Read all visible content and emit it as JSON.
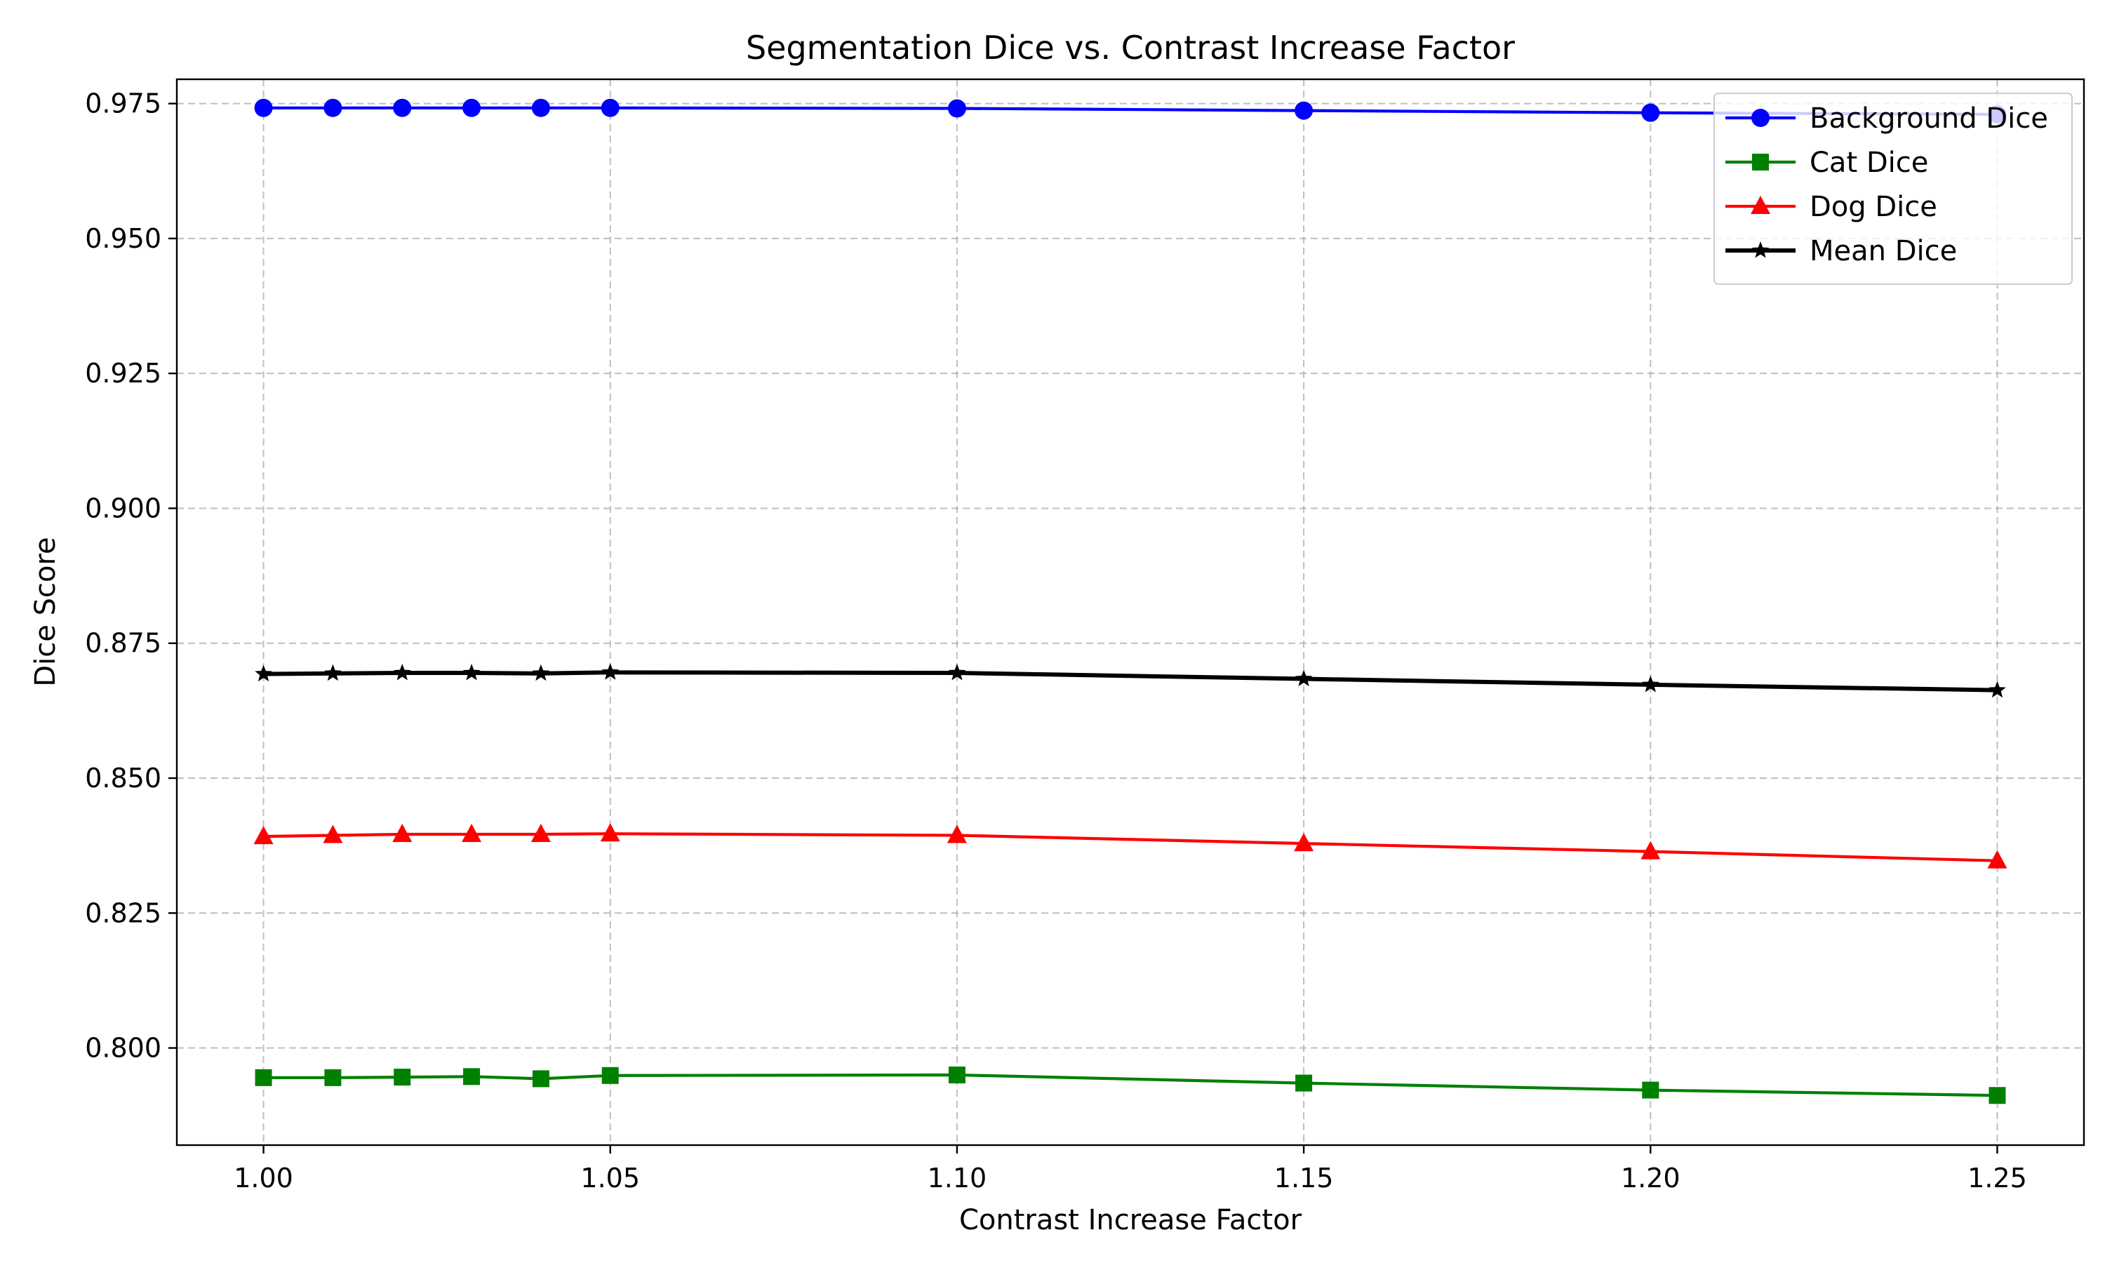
{
  "chart_data": {
    "type": "line",
    "title": "Segmentation Dice vs. Contrast Increase Factor",
    "xlabel": "Contrast Increase Factor",
    "ylabel": "Dice Score",
    "x": [
      1.0,
      1.01,
      1.02,
      1.03,
      1.04,
      1.05,
      1.1,
      1.15,
      1.2,
      1.25
    ],
    "xlim": [
      0.9875,
      1.2625
    ],
    "ylim": [
      0.782,
      0.9795
    ],
    "xticks": [
      1.0,
      1.05,
      1.1,
      1.15,
      1.2,
      1.25
    ],
    "xtick_labels": [
      "1.00",
      "1.05",
      "1.10",
      "1.15",
      "1.20",
      "1.25"
    ],
    "yticks": [
      0.8,
      0.825,
      0.85,
      0.875,
      0.9,
      0.925,
      0.95,
      0.975
    ],
    "ytick_labels": [
      "0.800",
      "0.825",
      "0.850",
      "0.875",
      "0.900",
      "0.925",
      "0.950",
      "0.975"
    ],
    "grid": true,
    "legend_position": "top-right",
    "series": [
      {
        "name": "Background Dice",
        "color": "#0000ff",
        "marker": "circle",
        "line_weight": "normal",
        "values": [
          0.9742,
          0.9742,
          0.9742,
          0.9742,
          0.9742,
          0.9742,
          0.9741,
          0.9737,
          0.9733,
          0.973
        ]
      },
      {
        "name": "Cat Dice",
        "color": "#008000",
        "marker": "square",
        "line_weight": "normal",
        "values": [
          0.7945,
          0.7945,
          0.7946,
          0.7947,
          0.7943,
          0.7949,
          0.795,
          0.7935,
          0.7922,
          0.7912
        ]
      },
      {
        "name": "Dog Dice",
        "color": "#ff0000",
        "marker": "triangle",
        "line_weight": "normal",
        "values": [
          0.8392,
          0.8394,
          0.8396,
          0.8396,
          0.8396,
          0.8397,
          0.8394,
          0.8379,
          0.8364,
          0.8347
        ]
      },
      {
        "name": "Mean Dice",
        "color": "#000000",
        "marker": "star",
        "line_weight": "bold",
        "values": [
          0.8693,
          0.8694,
          0.8695,
          0.8695,
          0.8694,
          0.8696,
          0.8695,
          0.8684,
          0.8673,
          0.8663
        ]
      }
    ]
  }
}
